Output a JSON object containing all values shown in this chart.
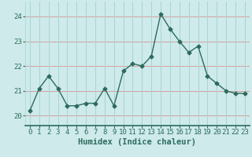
{
  "x": [
    0,
    1,
    2,
    3,
    4,
    5,
    6,
    7,
    8,
    9,
    10,
    11,
    12,
    13,
    14,
    15,
    16,
    17,
    18,
    19,
    20,
    21,
    22,
    23
  ],
  "y": [
    20.2,
    21.1,
    21.6,
    21.1,
    20.4,
    20.4,
    20.5,
    20.5,
    21.1,
    20.4,
    21.8,
    22.1,
    22.0,
    22.4,
    24.1,
    23.5,
    23.0,
    22.55,
    22.8,
    21.6,
    21.3,
    21.0,
    20.9,
    20.9
  ],
  "xlabel": "Humidex (Indice chaleur)",
  "line_color": "#2d6b5e",
  "marker": "D",
  "marker_size": 2.5,
  "bg_color": "#ceeaea",
  "grid_color_v": "#a8d4d4",
  "grid_color_h": "#d4a0a0",
  "ylim": [
    19.6,
    24.6
  ],
  "xlim": [
    -0.5,
    23.5
  ],
  "yticks": [
    20,
    21,
    22,
    23,
    24
  ],
  "xticks": [
    0,
    1,
    2,
    3,
    4,
    5,
    6,
    7,
    8,
    9,
    10,
    11,
    12,
    13,
    14,
    15,
    16,
    17,
    18,
    19,
    20,
    21,
    22,
    23
  ],
  "tick_fontsize": 6.5,
  "xlabel_fontsize": 7.5,
  "red_hlines": [
    20,
    21,
    22,
    23,
    24
  ],
  "spine_color": "#2d6b5e"
}
